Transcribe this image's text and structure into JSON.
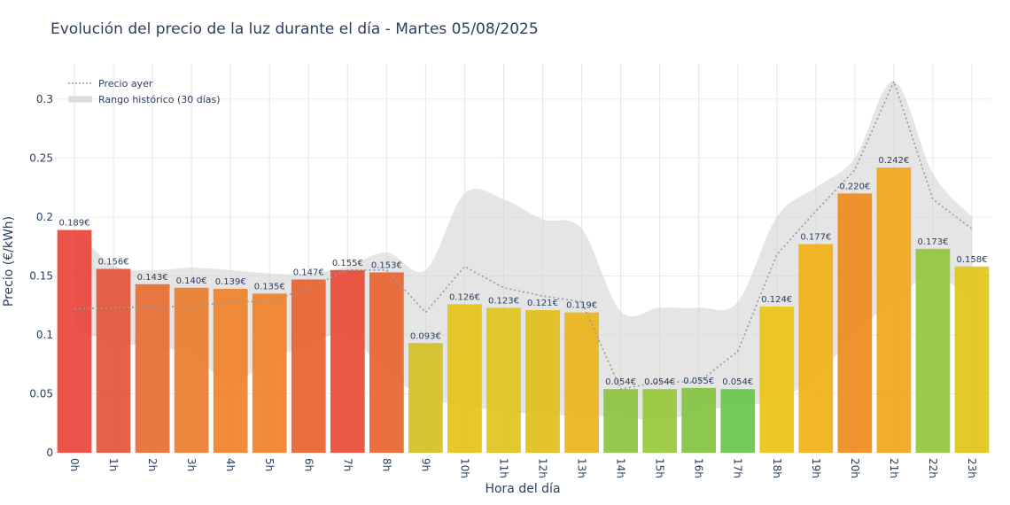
{
  "chart_data": {
    "type": "bar",
    "title": "Evolución del precio de la luz durante el día - Martes 05/08/2025",
    "xlabel": "Hora del día",
    "ylabel": "Precio (€/kWh)",
    "categories": [
      "0h",
      "1h",
      "2h",
      "3h",
      "4h",
      "5h",
      "6h",
      "7h",
      "8h",
      "9h",
      "10h",
      "11h",
      "12h",
      "13h",
      "14h",
      "15h",
      "16h",
      "17h",
      "18h",
      "19h",
      "20h",
      "21h",
      "22h",
      "23h"
    ],
    "ylim": [
      0,
      0.33
    ],
    "yticks": [
      0,
      0.05,
      0.1,
      0.15,
      0.2,
      0.25,
      0.3
    ],
    "ytick_labels": [
      "0",
      "0.05",
      "0.1",
      "0.15",
      "0.2",
      "0.25",
      "0.3"
    ],
    "grid": true,
    "legend_position": "top-left",
    "series": [
      {
        "name": "",
        "type": "bar",
        "values": [
          0.189,
          0.156,
          0.143,
          0.14,
          0.139,
          0.135,
          0.147,
          0.155,
          0.153,
          0.093,
          0.126,
          0.123,
          0.121,
          0.119,
          0.054,
          0.054,
          0.055,
          0.054,
          0.124,
          0.177,
          0.22,
          0.242,
          0.173,
          0.158
        ],
        "labels": [
          "0.189€",
          "0.156€",
          "0.143€",
          "0.140€",
          "0.139€",
          "0.135€",
          "0.147€",
          "0.155€",
          "0.153€",
          "0.093€",
          "0.126€",
          "0.123€",
          "0.121€",
          "0.119€",
          "0.054€",
          "0.054€",
          "0.055€",
          "0.054€",
          "0.124€",
          "0.177€",
          "0.220€",
          "0.242€",
          "0.173€",
          "0.158€"
        ],
        "colors": [
          "#e8453b",
          "#e2553b",
          "#e66e33",
          "#eb7d2d",
          "#ee8128",
          "#ee8128",
          "#e9622f",
          "#e84b35",
          "#e9642f",
          "#d2c024",
          "#e4c318",
          "#dfc41c",
          "#e2bf1a",
          "#e9b51a",
          "#8bc43f",
          "#98c83c",
          "#82c43f",
          "#69c74b",
          "#eac415",
          "#f0b115",
          "#ef8b20",
          "#f0a718",
          "#92c63d",
          "#e2c517"
        ]
      },
      {
        "name": "Precio ayer",
        "type": "line",
        "values": [
          0.122,
          0.123,
          0.124,
          0.124,
          0.128,
          0.128,
          0.14,
          0.155,
          0.155,
          0.119,
          0.158,
          0.14,
          0.133,
          0.128,
          0.054,
          0.06,
          0.06,
          0.086,
          0.168,
          0.205,
          0.24,
          0.315,
          0.215,
          0.19
        ],
        "color": "#999999",
        "dash": "dot"
      },
      {
        "name": "Rango histórico (30 días)",
        "type": "band",
        "lower": [
          0.105,
          0.094,
          0.09,
          0.083,
          0.06,
          0.078,
          0.092,
          0.1,
          0.068,
          0.047,
          0.04,
          0.035,
          0.033,
          0.031,
          0.031,
          0.027,
          0.035,
          0.04,
          0.045,
          0.065,
          0.1,
          0.13,
          0.15,
          0.13
        ],
        "upper": [
          0.19,
          0.159,
          0.155,
          0.157,
          0.155,
          0.152,
          0.152,
          0.158,
          0.17,
          0.155,
          0.22,
          0.215,
          0.198,
          0.19,
          0.12,
          0.123,
          0.123,
          0.128,
          0.2,
          0.225,
          0.25,
          0.315,
          0.237,
          0.2
        ],
        "color": "#d3d3d3"
      }
    ]
  }
}
